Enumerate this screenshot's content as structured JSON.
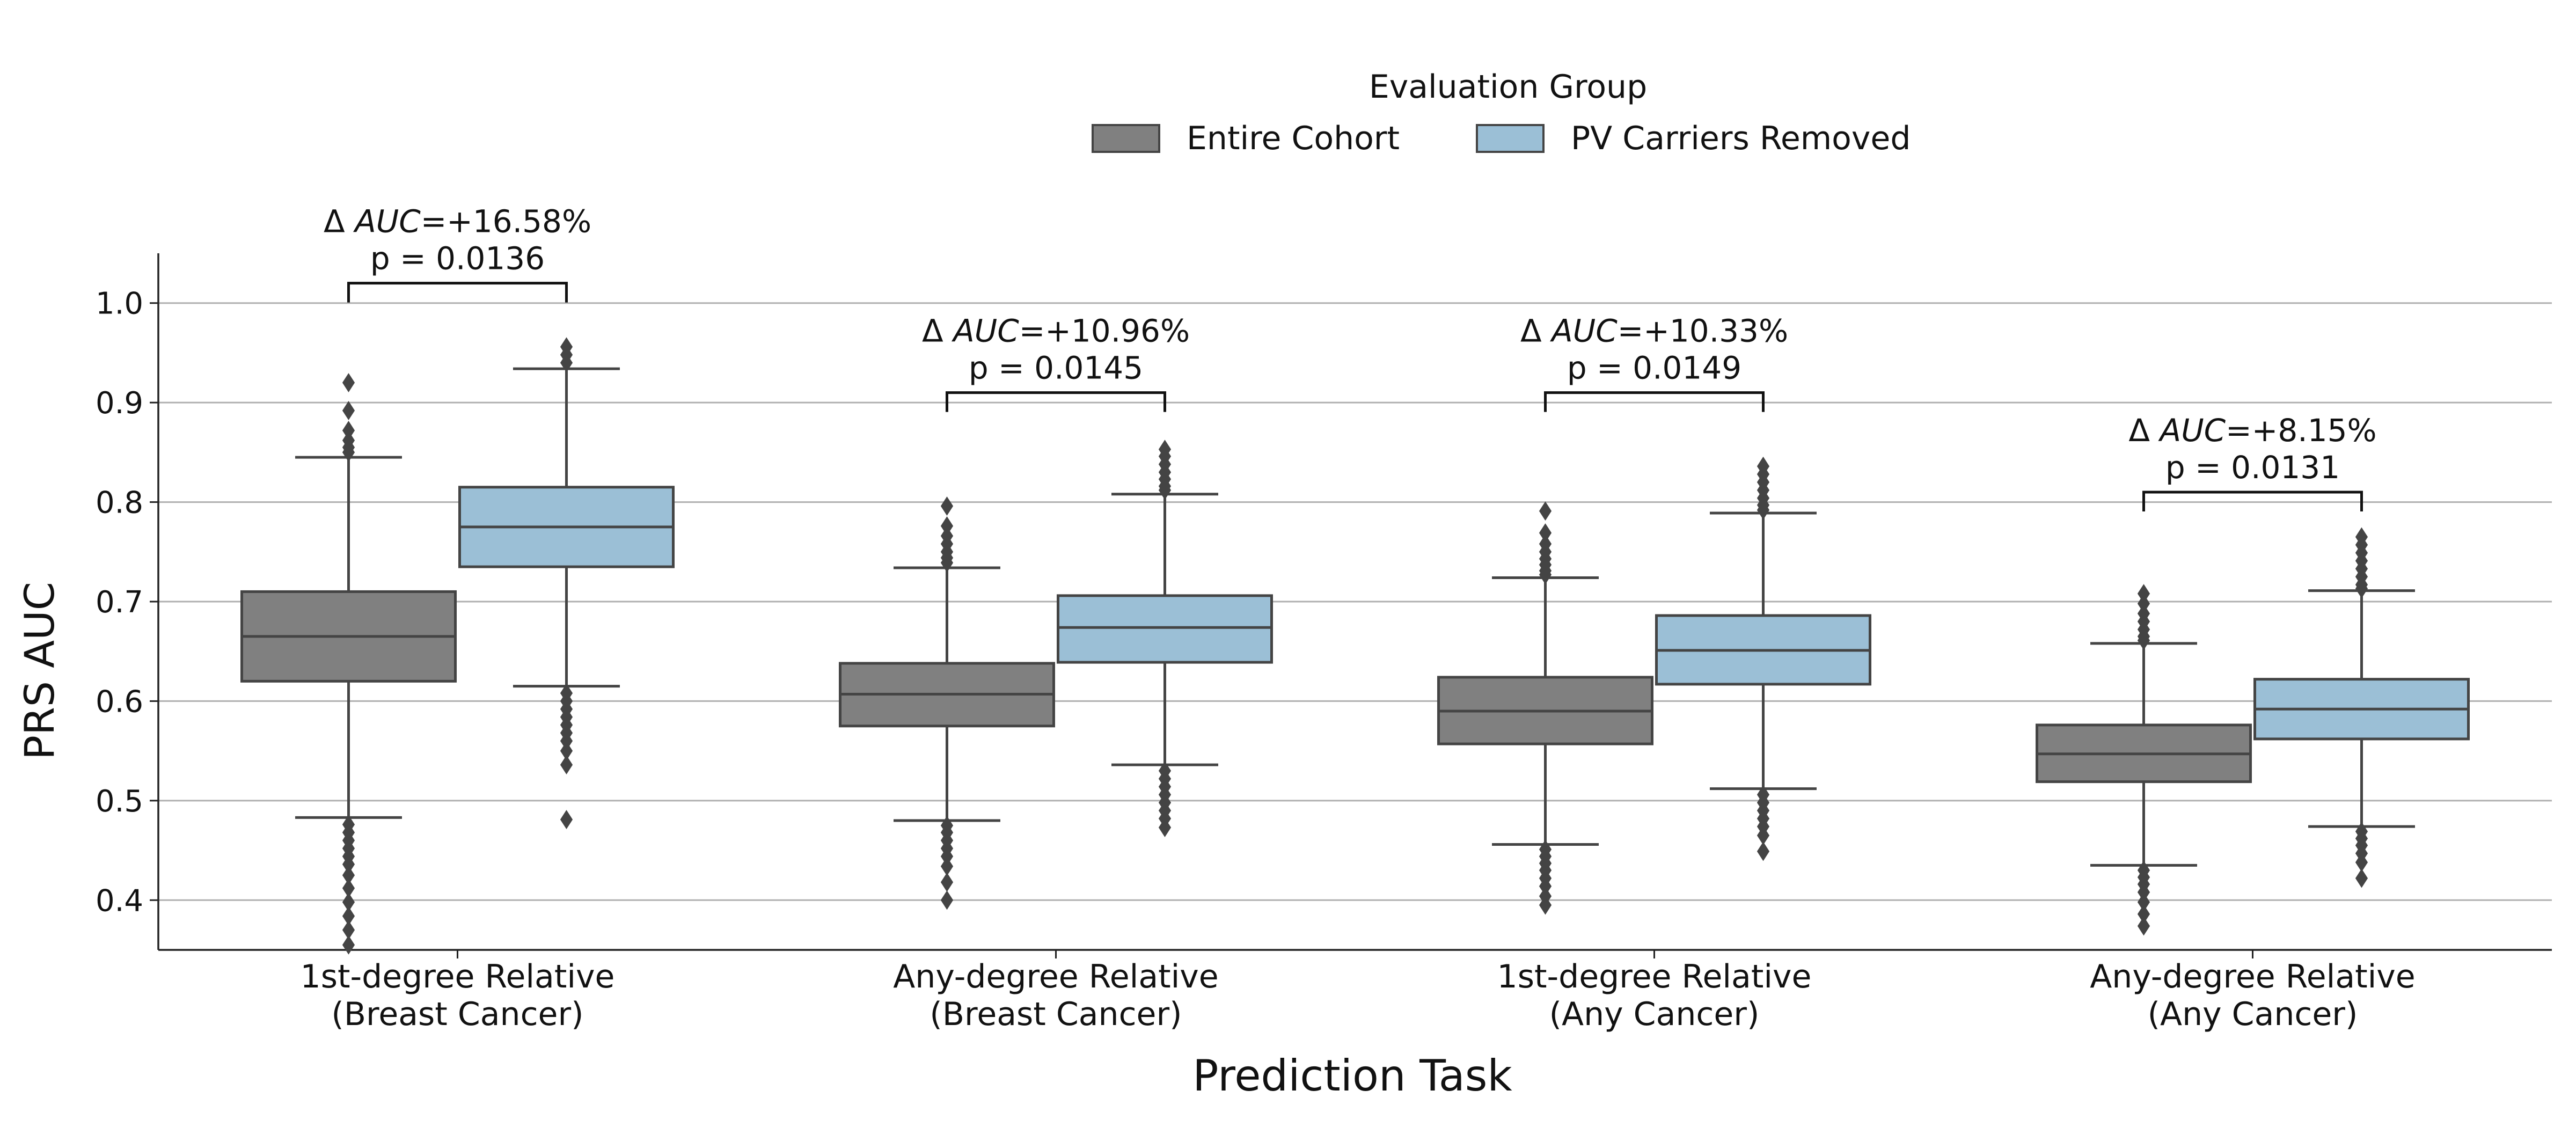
{
  "chart_data": {
    "type": "box",
    "xlabel": "Prediction Task",
    "ylabel": "PRS AUC",
    "ylim": [
      0.35,
      1.05
    ],
    "yticks": [
      0.4,
      0.5,
      0.6,
      0.7,
      0.8,
      0.9,
      1.0
    ],
    "ytick_labels": [
      "0.4",
      "0.5",
      "0.6",
      "0.7",
      "0.8",
      "0.9",
      "1.0"
    ],
    "grid": "y",
    "legend": {
      "title": "Evaluation Group",
      "placement": "top-center",
      "entries": [
        "Entire Cohort",
        "PV Carriers Removed"
      ]
    },
    "colors": {
      "Entire Cohort": "#808080",
      "PV Carriers Removed": "#9bbfd6",
      "edge": "#444444"
    },
    "categories": [
      [
        "1st-degree Relative",
        "(Breast Cancer)"
      ],
      [
        "Any-degree Relative",
        "(Breast Cancer)"
      ],
      [
        "1st-degree Relative",
        "(Any Cancer)"
      ],
      [
        "Any-degree Relative",
        "(Any Cancer)"
      ]
    ],
    "series": [
      {
        "name": "Entire Cohort",
        "boxes": [
          {
            "whisker_low": 0.483,
            "q1": 0.62,
            "median": 0.665,
            "q3": 0.71,
            "whisker_high": 0.845,
            "outliers_high": [
              0.92,
              0.892,
              0.872,
              0.862,
              0.855,
              0.85
            ],
            "outliers_low": [
              0.476,
              0.468,
              0.46,
              0.452,
              0.444,
              0.436,
              0.425,
              0.412,
              0.398,
              0.384,
              0.37,
              0.355
            ]
          },
          {
            "whisker_low": 0.48,
            "q1": 0.575,
            "median": 0.607,
            "q3": 0.638,
            "whisker_high": 0.734,
            "outliers_high": [
              0.796,
              0.776,
              0.766,
              0.758,
              0.75,
              0.744,
              0.739
            ],
            "outliers_low": [
              0.475,
              0.468,
              0.46,
              0.452,
              0.444,
              0.434,
              0.418,
              0.4
            ]
          },
          {
            "whisker_low": 0.456,
            "q1": 0.557,
            "median": 0.59,
            "q3": 0.624,
            "whisker_high": 0.724,
            "outliers_high": [
              0.791,
              0.769,
              0.758,
              0.75,
              0.743,
              0.737,
              0.731,
              0.727
            ],
            "outliers_low": [
              0.451,
              0.444,
              0.437,
              0.43,
              0.422,
              0.414,
              0.404,
              0.395
            ]
          },
          {
            "whisker_low": 0.435,
            "q1": 0.519,
            "median": 0.547,
            "q3": 0.576,
            "whisker_high": 0.658,
            "outliers_high": [
              0.708,
              0.698,
              0.688,
              0.68,
              0.672,
              0.665,
              0.661
            ],
            "outliers_low": [
              0.43,
              0.423,
              0.416,
              0.408,
              0.398,
              0.386,
              0.374
            ]
          }
        ]
      },
      {
        "name": "PV Carriers Removed",
        "boxes": [
          {
            "whisker_low": 0.615,
            "q1": 0.735,
            "median": 0.775,
            "q3": 0.815,
            "whisker_high": 0.934,
            "outliers_high": [
              0.956,
              0.948,
              0.94
            ],
            "outliers_low": [
              0.608,
              0.6,
              0.592,
              0.584,
              0.576,
              0.568,
              0.56,
              0.55,
              0.536,
              0.481
            ]
          },
          {
            "whisker_low": 0.536,
            "q1": 0.639,
            "median": 0.674,
            "q3": 0.706,
            "whisker_high": 0.808,
            "outliers_high": [
              0.853,
              0.846,
              0.838,
              0.83,
              0.823,
              0.816,
              0.812
            ],
            "outliers_low": [
              0.53,
              0.522,
              0.514,
              0.506,
              0.498,
              0.49,
              0.482,
              0.473
            ]
          },
          {
            "whisker_low": 0.512,
            "q1": 0.617,
            "median": 0.651,
            "q3": 0.686,
            "whisker_high": 0.789,
            "outliers_high": [
              0.836,
              0.828,
              0.82,
              0.812,
              0.804,
              0.797,
              0.792
            ],
            "outliers_low": [
              0.506,
              0.498,
              0.49,
              0.482,
              0.474,
              0.465,
              0.449
            ]
          },
          {
            "whisker_low": 0.474,
            "q1": 0.562,
            "median": 0.592,
            "q3": 0.622,
            "whisker_high": 0.711,
            "outliers_high": [
              0.765,
              0.757,
              0.749,
              0.741,
              0.733,
              0.725,
              0.717,
              0.713
            ],
            "outliers_low": [
              0.469,
              0.462,
              0.455,
              0.447,
              0.438,
              0.422
            ]
          }
        ]
      }
    ],
    "annotations": [
      {
        "category_index": 0,
        "bracket_y": 1.02,
        "text_line1_prefix": "Δ ",
        "text_line1_italic": "AUC",
        "text_line1_suffix": "=+16.58%",
        "text_line2": "p = 0.0136"
      },
      {
        "category_index": 1,
        "bracket_y": 0.91,
        "text_line1_prefix": "Δ ",
        "text_line1_italic": "AUC",
        "text_line1_suffix": "=+10.96%",
        "text_line2": "p = 0.0145"
      },
      {
        "category_index": 2,
        "bracket_y": 0.91,
        "text_line1_prefix": "Δ ",
        "text_line1_italic": "AUC",
        "text_line1_suffix": "=+10.33%",
        "text_line2": "p = 0.0149"
      },
      {
        "category_index": 3,
        "bracket_y": 0.81,
        "text_line1_prefix": "Δ ",
        "text_line1_italic": "AUC",
        "text_line1_suffix": "=+8.15%",
        "text_line2": "p = 0.0131"
      }
    ]
  }
}
